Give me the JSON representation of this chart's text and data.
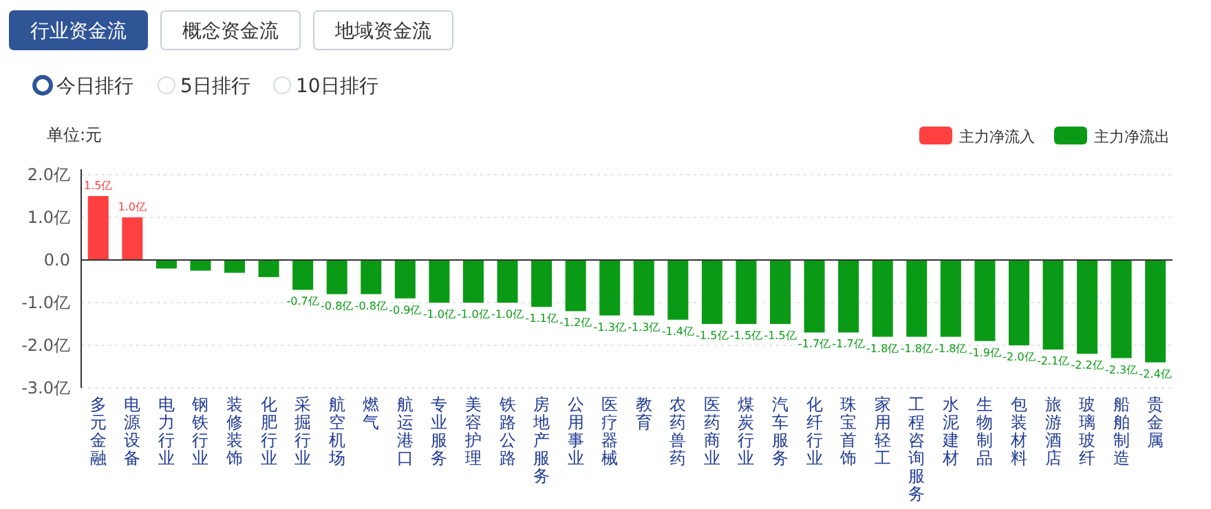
{
  "chart_data": {
    "type": "bar",
    "annotations": [
      "行业资金流",
      "概念资金流",
      "地域资金流",
      "今日排行",
      "5日排行",
      "10日排行"
    ],
    "ylabel": "单位:元",
    "categories": [
      "多元金融",
      "电源设备",
      "电力行业",
      "钢铁行业",
      "装修装饰",
      "化肥行业",
      "采掘行业",
      "航空机场",
      "燃气",
      "航运港口",
      "专业服务",
      "美容护理",
      "铁路公路",
      "房地产服务",
      "公用事业",
      "医疗器械",
      "教育",
      "农药兽药",
      "医药商业",
      "煤炭行业",
      "汽车服务",
      "化纤行业",
      "珠宝首饰",
      "家用轻工",
      "工程咨询服务",
      "水泥建材",
      "生物制品",
      "包装材料",
      "旅游酒店",
      "玻璃玻纤",
      "船舶制造",
      "贵金属"
    ],
    "series": [
      {
        "name": "主力净流入",
        "color": "#ff4040",
        "values": [
          1.5,
          1.0,
          null,
          null,
          null,
          null,
          null,
          null,
          null,
          null,
          null,
          null,
          null,
          null,
          null,
          null,
          null,
          null,
          null,
          null,
          null,
          null,
          null,
          null,
          null,
          null,
          null,
          null,
          null,
          null,
          null,
          null
        ],
        "value_labels": [
          "1.5亿",
          "1.0亿",
          null,
          null,
          null,
          null,
          null,
          null,
          null,
          null,
          null,
          null,
          null,
          null,
          null,
          null,
          null,
          null,
          null,
          null,
          null,
          null,
          null,
          null,
          null,
          null,
          null,
          null,
          null,
          null,
          null,
          null
        ]
      },
      {
        "name": "主力净流出",
        "color": "#0b9a16",
        "values": [
          null,
          null,
          -0.2,
          -0.25,
          -0.3,
          -0.4,
          -0.7,
          -0.8,
          -0.8,
          -0.9,
          -1.0,
          -1.0,
          -1.0,
          -1.1,
          -1.2,
          -1.3,
          -1.3,
          -1.4,
          -1.5,
          -1.5,
          -1.5,
          -1.7,
          -1.7,
          -1.8,
          -1.8,
          -1.8,
          -1.9,
          -2.0,
          -2.1,
          -2.2,
          -2.3,
          -2.4
        ],
        "value_labels": [
          null,
          null,
          null,
          null,
          null,
          null,
          "-0.7亿",
          "-0.8亿",
          "-0.8亿",
          "-0.9亿",
          "-1.0亿",
          "-1.0亿",
          "-1.0亿",
          "-1.1亿",
          "-1.2亿",
          "-1.3亿",
          "-1.3亿",
          "-1.4亿",
          "-1.5亿",
          "-1.5亿",
          "-1.5亿",
          "-1.7亿",
          "-1.7亿",
          "-1.8亿",
          "-1.8亿",
          "-1.8亿",
          "-1.9亿",
          "-2.0亿",
          "-2.1亿",
          "-2.2亿",
          "-2.3亿",
          "-2.4亿"
        ]
      }
    ],
    "ylim": [
      -3,
      2
    ],
    "yticks": [
      {
        "value": 2,
        "label": "2.0亿"
      },
      {
        "value": 1,
        "label": "1.0亿"
      },
      {
        "value": 0,
        "label": "0.0"
      },
      {
        "value": -1,
        "label": "-1.0亿"
      },
      {
        "value": -2,
        "label": "-2.0亿"
      },
      {
        "value": -3,
        "label": "-3.0亿"
      }
    ],
    "grid": "y",
    "legend": "top right"
  }
}
